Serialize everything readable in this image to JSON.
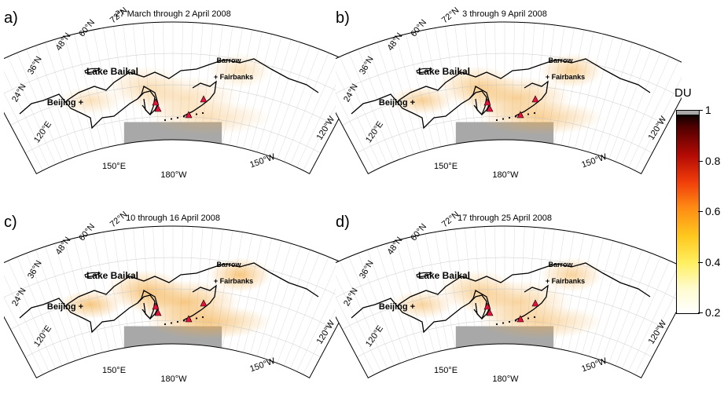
{
  "panels": [
    {
      "letter": "a)",
      "title": "27 March through 2 April 2008"
    },
    {
      "letter": "b)",
      "title": "3 through 9 April 2008"
    },
    {
      "letter": "c)",
      "title": "10 through 16 April 2008"
    },
    {
      "letter": "d)",
      "title": "17 through 25 April 2008"
    }
  ],
  "map_labels": {
    "lat_24": "24°N",
    "lat_36": "36°N",
    "lat_48": "48°N",
    "lat_60": "60°N",
    "lat_72": "72°N",
    "lon_120e": "120°E",
    "lon_150e": "150°E",
    "lon_180w": "180°W",
    "lon_150w": "150°W",
    "lon_120w": "120°W",
    "place_lake_baikal": "Lake Baikal",
    "place_beijing": "Beijing +",
    "place_barrow": "Barrow",
    "place_fairbanks": "+ Fairbanks"
  },
  "colorbar": {
    "unit": "DU",
    "ticks": [
      {
        "value": 1,
        "label": "1"
      },
      {
        "value": 0.8,
        "label": "0.8"
      },
      {
        "value": 0.6,
        "label": "0.6"
      },
      {
        "value": 0.4,
        "label": "0.4"
      },
      {
        "value": 0.2,
        "label": "0.2"
      }
    ],
    "min": 0.2,
    "max": 1,
    "colors": [
      "#ffffff",
      "#ffef60",
      "#ff8c14",
      "#f03c0a",
      "#b40a05",
      "#000000"
    ]
  },
  "plume_intensity": [
    0.35,
    0.55,
    0.65,
    0.5
  ],
  "colors": {
    "volcano_marker": "#e8103c",
    "no_data": "#a8a8a8",
    "plume": "#f2a83c"
  }
}
